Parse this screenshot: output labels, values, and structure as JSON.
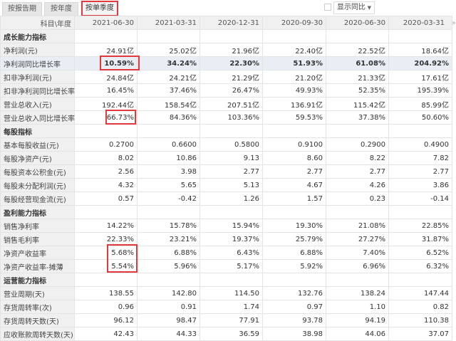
{
  "tabs": [
    {
      "label": "按报告期"
    },
    {
      "label": "按年度"
    },
    {
      "label": "按单季度",
      "active": true
    }
  ],
  "show_yoy": {
    "label": "显示同比",
    "checked": false
  },
  "header": {
    "label": "科目\\年度",
    "periods": [
      "2021-06-30",
      "2021-03-31",
      "2020-12-31",
      "2020-09-30",
      "2020-06-30",
      "2020-03-31"
    ],
    "more": "»"
  },
  "rows": [
    {
      "section": "成长能力指标"
    },
    {
      "label": "净利润(元)",
      "values": [
        "24.91亿",
        "25.02亿",
        "21.96亿",
        "22.40亿",
        "22.52亿",
        "18.64亿"
      ]
    },
    {
      "label": "净利润同比增长率",
      "values": [
        "10.59%",
        "34.24%",
        "22.30%",
        "51.93%",
        "61.08%",
        "204.92%"
      ],
      "highlight": true
    },
    {
      "label": "扣非净利润(元)",
      "values": [
        "24.84亿",
        "24.21亿",
        "21.29亿",
        "21.20亿",
        "21.33亿",
        "17.61亿"
      ]
    },
    {
      "label": "扣非净利润同比增长率",
      "values": [
        "16.45%",
        "37.46%",
        "26.47%",
        "49.93%",
        "52.35%",
        "195.39%"
      ]
    },
    {
      "label": "营业总收入(元)",
      "values": [
        "192.44亿",
        "158.54亿",
        "207.51亿",
        "136.91亿",
        "115.42亿",
        "85.99亿"
      ]
    },
    {
      "label": "营业总收入同比增长率",
      "values": [
        "66.73%",
        "84.36%",
        "103.36%",
        "59.53%",
        "37.38%",
        "50.60%"
      ]
    },
    {
      "section": "每股指标"
    },
    {
      "label": "基本每股收益(元)",
      "values": [
        "0.2700",
        "0.6600",
        "0.5800",
        "0.9100",
        "0.2900",
        "0.4900"
      ]
    },
    {
      "label": "每股净资产(元)",
      "values": [
        "8.02",
        "10.86",
        "9.13",
        "8.60",
        "8.22",
        "7.82"
      ]
    },
    {
      "label": "每股资本公积金(元)",
      "values": [
        "2.56",
        "3.98",
        "2.77",
        "2.77",
        "2.77",
        "2.77"
      ]
    },
    {
      "label": "每股未分配利润(元)",
      "values": [
        "4.32",
        "5.65",
        "5.13",
        "4.67",
        "4.26",
        "3.86"
      ]
    },
    {
      "label": "每股经营现金流(元)",
      "values": [
        "0.57",
        "-0.42",
        "1.26",
        "1.57",
        "0.23",
        "-0.14"
      ]
    },
    {
      "section": "盈利能力指标"
    },
    {
      "label": "销售净利率",
      "values": [
        "14.22%",
        "15.78%",
        "15.94%",
        "19.30%",
        "21.08%",
        "22.85%"
      ]
    },
    {
      "label": "销售毛利率",
      "values": [
        "22.33%",
        "23.21%",
        "19.37%",
        "25.79%",
        "27.27%",
        "31.87%"
      ]
    },
    {
      "label": "净资产收益率",
      "values": [
        "5.68%",
        "6.88%",
        "6.43%",
        "6.88%",
        "7.40%",
        "6.52%"
      ]
    },
    {
      "label": "净资产收益率-摊薄",
      "values": [
        "5.54%",
        "5.96%",
        "5.17%",
        "5.92%",
        "6.96%",
        "6.32%"
      ]
    },
    {
      "section": "运营能力指标"
    },
    {
      "label": "营业周期(天)",
      "values": [
        "138.55",
        "142.80",
        "114.50",
        "132.76",
        "138.24",
        "147.44"
      ]
    },
    {
      "label": "存货周转率(次)",
      "values": [
        "0.96",
        "0.91",
        "1.74",
        "0.97",
        "1.10",
        "0.82"
      ]
    },
    {
      "label": "存货周转天数(天)",
      "values": [
        "96.12",
        "98.47",
        "77.91",
        "93.78",
        "94.19",
        "110.38"
      ]
    },
    {
      "label": "应收账款周转天数(天)",
      "values": [
        "42.43",
        "44.33",
        "36.59",
        "38.98",
        "44.06",
        "37.07"
      ]
    }
  ],
  "colors": {
    "highlight_box": "#e0393e",
    "label_bg": "#f0f0f0",
    "highlight_row": "#e9eef5"
  }
}
